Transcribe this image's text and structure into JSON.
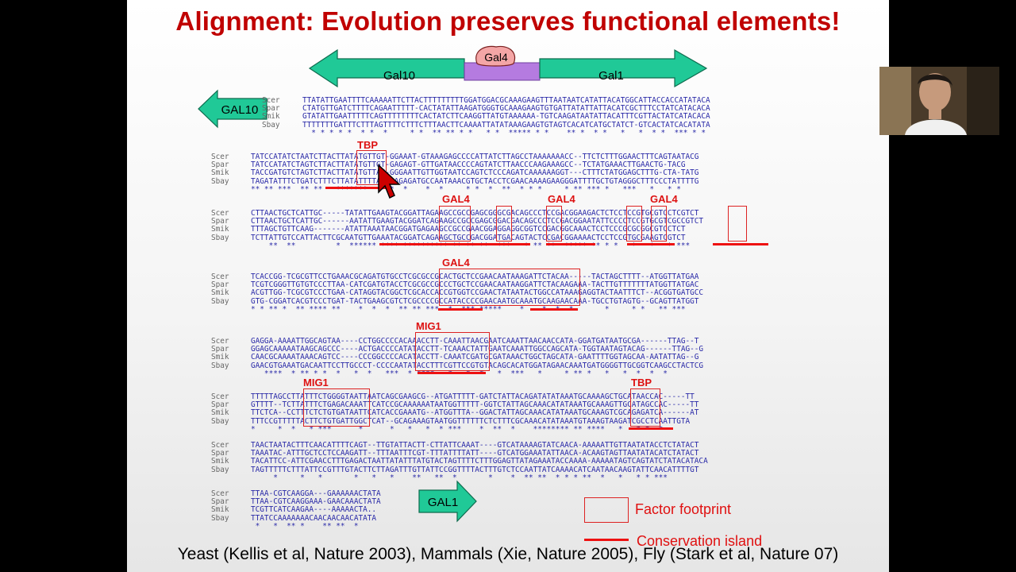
{
  "slide": {
    "title": "Alignment: Evolution preserves functional elements!",
    "citation": "Yeast (Kellis et al, Nature 2003), Mammals (Xie, Nature 2005), Fly (Stark et al, Nature 07)"
  },
  "top_diagram": {
    "gal10": "Gal10",
    "gal4": "Gal4",
    "gal1": "Gal1"
  },
  "arrows": {
    "gal10_left": "GAL10",
    "gal1_right": "GAL1"
  },
  "colors": {
    "title": "#c00000",
    "footprint": "#dd2222",
    "sequence": "#2a2aa8",
    "arrow_fill": "#20c997",
    "gal4_protein": "#f4a6a6",
    "linker": "#b57be0"
  },
  "legend": {
    "footprint": "Factor footprint",
    "island": "Conservation island"
  },
  "footprint_labels": {
    "tbp1": "TBP",
    "gal4a": "GAL4",
    "gal4b": "GAL4",
    "gal4c": "GAL4",
    "gal4d": "GAL4",
    "mig1a": "MIG1",
    "mig1b": "MIG1",
    "tbp2": "TBP"
  },
  "blocks": [
    {
      "names": "Scer\nSpar\nSmik\nSbay",
      "seq": "TTATATTGAATTTTCAAAAATTCTTACTTTTTTTTTGGATGGACGCAAAGAAGTTTAATAATCATATTACATGGCATTACCACCATATACA\nCTATGTTGATCTTTTCAGAATTTTT-CACTATATTAAGATGGGTGCAAAGAAGTGTGATTATATTATTACATCGCTTTCCTATCATACACA\nGTATATTGAATTTTTCAGTTTTTTTTCACTATCTTCAAGGTTATGTAAAAAA-TGTCAAGATAATATTACATTTCGTTACTATCATACACA\nTTTTTTTGATTTCTTTAGTTTTCTTTCTTTAACTTCAAAATTATATAAAGAAGTGTAGTCACATCATGCTATCT-GTCACTATCACATATA\n  * * * * *  * *  *     * *  ** ** * *   * *  ***** * *    ** *  * *   *   *  * *  *** * *"
    },
    {
      "names": "Scer\nSpar\nSmik\nSbay",
      "seq": "TATCCATATCTAATCTTACTTATATGTTGT-GGAAAT-GTAAAGAGCCCCATTATCTTAGCCTAAAAAAACC--TTCTCTTTGGAACTTTCAGTAATACG\nTATCCATATCTAGTCTTACTTATATGTTGT-GAGAGT-GTTGATAACCCCAGTATCTTAACCCAAGAAAGCC--TCTATGAAACTTGAACTG-TACG\nTACCGATGTCTAGTCTTACTTATATGTTAC-GGGAATTGTTGGTAATCCAGTCTCCCAGATCAAAAAAGGT---CTTTCTATGGAGCTTTG-CTA-TATG\nTAGATATTTCTGATCTTTCTTATATTTTATAGAGAGATGCCAATAAACGTGCTACCTCGAACAAAAGAAGGGATTTTGCTGTAGGGCTTTCCCTATTTTG\n** ** ***  ** **   *******  ** *  *    *  *     * *  *  **  * * *     * ** *** *   ***   *   * *"
    },
    {
      "names": "Scer\nSpar\nSmik\nSbay",
      "seq": "CTTAACTGCTCATTGC-----TATATTGAAGTACGGATTAGAAGCCGCCGAGCGGGCGACAGCCCTCCGACGGAAGACTCTCCTCCGTGCGTCCTCGTCT\nCTTAACTGCTCATTGC------AATATTGAAGTACGGATCAGAAGCCGCCGAGCGGACGACAGCCCTCCGACGGAATATTCCCCTCCGTGCGTCGCCGTCT\nTTTAGCTGTTCAAG-------ATATTAAATAACGGATGAGAAGCCGCCGAACGGAGGAGGCGGTCCGACGGCAAACTCCTCCCGCGCGGCGTCCTCT\nTCTTATTGTCCATTACTTCGCAATGTTGAAATACGGATCAGAAGCTGCCGACGGATGACAGTACTCCGACGGAAAACTCCTCCGTGCGAAGTCGTCT\n    **  **         *  ****** **** ********** ** ** **  ***   * ** **  ***** ** * *   *   *   * ***"
    },
    {
      "names": "Scer\nSpar\nSmik\nSbay",
      "seq": "TCACCGG-TCGCGTTCCTGAAACGCAGATGTGCCTCGCGCCGCACTGCTCCGAACAATAAAGATTCTACAA-----TACTAGCTTTT--ATGGTTATGAA\nTCGTCGGGTTGTGTCCCTTAA-CATCGATGTACCTCGCGCCGCCCTGCTCCGAACAATAAGGATTCTACAAGAAA-TACTTGTTTTTTTATGGTTATGAC\nACGTTGG-TCGCGTCCCTGAA-CATAGGTACGGCTCGCACCACCGTGGTCCGAACTATAATACTGGCCATAAAGAGGTACTAATTTCT--ACGGTGATGCC\nGTG-CGGATCACGTCCCTGAT-TACTGAAGCGTCTCGCCCCGCCATACCCCGAACAATGCAAATGCAAGAACAAA-TGCCTGTAGTG--GCAGTTATGGT\n* * ** *  ** **** **    *  *  *  ** ** ***  *  *** *****    *    *  *  *       *     * *   ** ***"
    },
    {
      "names": "Scer\nSpar\nSmik\nSbay",
      "seq": "GAGGA-AAAATTGGCAGTAA----CCTGGCCCCACAAACCTT-CAAATTAACGAATCAAATTAACAACCATA-GGATGATAATGCGA------TTAG--T\nGGAGCAAAAATAAGCAGCCC----ACTGACCCCATATACCTT-TCAAACTATTGAATCAAATTGGCCAGCATA-TGGTAATAGTACAG------TTAG--G\nCAACGCAAAATAAACAGTCC----CCCGGCCCCACATACCTT-CAAATCGATGCGATAAACTGGCTAGCATA-GAATTTTGGTAGCAA-AATATTAG--G\nGAACGTGAAATGACAATTCCTTGCCCT-CCCCAATATACCTTTCGTTCCGTGTACAGCACATGGATAGAACAAATGATGGGGTTGCGGTCAAGCCTACTCG\n   ****  * ** * *  *   *  *   ***  * ****   *   *  *   *  ***   *     * ** *   *   *  *  *  *"
    },
    {
      "names": "Scer\nSpar\nSmik\nSbay",
      "seq": "TTTTTAGCCTTATTTCTGGGGTAATTAATCAGCGAAGCG--ATGATTTTT-GATCTATTACAGATATATAAATGCAAAAGCTGCATAACCAC-----TT\nGTTTT--TCTTATTTCTGAGACAAATTCATCCGCAAAAAATAATGGTTTTT-GGTCTATTAGCAAACATATAAATGCAAAGTTGCATAGCCAC-----TT\nTTCTCA--CCTTTCTCTGTGATAATTCATCACCGAAATG--ATGGTTTA--GGACTATTAGCAAACATATAAATGCAAAGTCGCAGAGATCA------AT\nTTTCCGTTTTTACTTCTGTGATTGGCTCAT--GCAGAAAGTAATGGTTTTTTCTCTTTCGCAAACATATAAATGTAAAGTAAGATCGCCTCAATTGTA\n*     *  *   * ***      *      *   *   *  * ***    *  **  *    ******** ** ****   *   * *  *"
    },
    {
      "names": "Scer\nSpar\nSmik\nSbay",
      "seq": "TAACTAATACTTTCAACATTTTCAGT--TTGTATTACTT-CTTATTCAAAT----GTCATAAAAGTATCAACA-AAAAATTGTTAATATACCTCTATACT\nTAAATAC-ATTTGCTCCTCCAAGATT--TTTAATTTCGT-TTTATTTTATT----GTCATGGAAATATTAACA-ACAAGTAGTTAATATACATCTATACT\nTACATTCC-ATTCGAACCTTTGAGACTAATTATATTTATGTACTAGTTTTCTTTGGAGTTATAGAAATACCAAAA-AAAAATAGTCAGTATCTATACATACA\nTAGTTTTTCTTTATTCCGTTTGTACTTCTTAGATTTGTTATTCCGGTTTTACTTTGTCTCCAATTATCAAAACATCAATAACAAGTATTCAACATTTTGT\n     *     *   *       *   *   *    **   **  *       *    *  ** **  * * * **  *   *   * * ***"
    },
    {
      "names": "Scer\nSpar\nSmik\nSbay",
      "seq": "TTAA-CGTCAAGGA---GAAAAAACTATA\nTTAA-CGTCAAGGAAA-GAACAAACTATA\nTCGTTCATCAAGAA----AAAAACTA..\nTTATCCAAAAAAACAACAACAACATATA\n *   *  ** *    ** **  *"
    }
  ]
}
